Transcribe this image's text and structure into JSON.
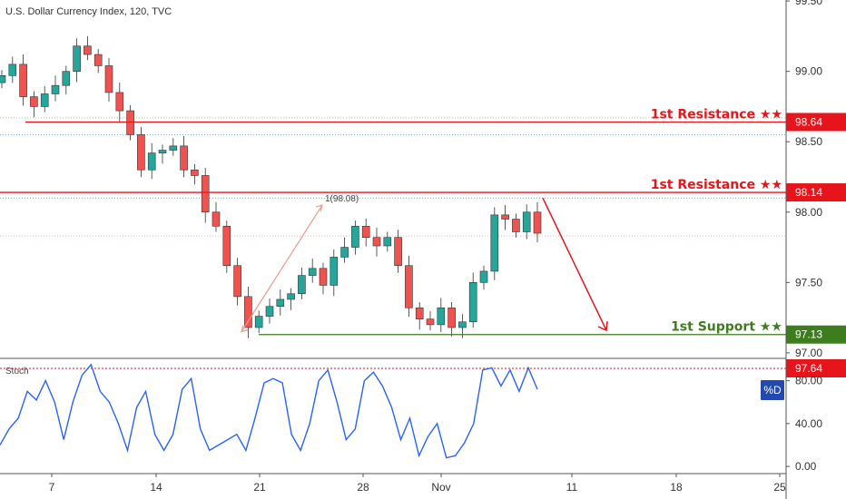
{
  "chart_title": "U.S. Dollar Currency Index, 120, TVC",
  "stoch_label": "Stoch",
  "d_label": "%D",
  "colors": {
    "resistance": "#e8141c",
    "support": "#3e7d1e",
    "candle_up": "#26a69a",
    "candle_down": "#ef5350",
    "stoch_line": "#2962ff",
    "badge_red": "#e8141c",
    "badge_green": "#3e7d1e",
    "badge_blue": "#2348b0",
    "projection": "#e8141c",
    "measure": "#f09a8c"
  },
  "chart_data": {
    "type": "candlestick",
    "price_axis": {
      "ticks": [
        "99.50",
        "99.00",
        "98.50",
        "98.00",
        "97.50",
        "97.00"
      ],
      "range": [
        96.98,
        99.52
      ]
    },
    "date_axis": {
      "ticks": [
        "7",
        "14",
        "21",
        "28",
        "Nov",
        "11",
        "18",
        "25"
      ]
    },
    "levels": [
      {
        "label": "1st Resistance ★★",
        "value": "98.64",
        "kind": "resistance"
      },
      {
        "label": "1st Resistance ★★",
        "value": "98.14",
        "kind": "resistance"
      },
      {
        "label": "1st Support ★★",
        "value": "97.13",
        "kind": "support"
      }
    ],
    "measure_label": "1(98.08)",
    "close_series": [
      98.97,
      99.05,
      98.82,
      98.75,
      98.84,
      98.9,
      99.0,
      99.18,
      99.12,
      99.04,
      98.85,
      98.72,
      98.55,
      98.3,
      98.42,
      98.44,
      98.47,
      98.3,
      98.26,
      98.0,
      97.9,
      97.62,
      97.4,
      97.18,
      97.26,
      97.33,
      97.38,
      97.42,
      97.55,
      97.6,
      97.48,
      97.68,
      97.75,
      97.9,
      97.82,
      97.76,
      97.82,
      97.62,
      97.32,
      97.24,
      97.2,
      97.32,
      97.18,
      97.22,
      97.5,
      97.58,
      97.98,
      97.95,
      97.86,
      98.0,
      97.85
    ],
    "stochastic": {
      "ticks": [
        "80.00",
        "40.00",
        "0.00"
      ],
      "range": [
        -5,
        100
      ],
      "overbought_label": "97.64",
      "values": [
        20,
        35,
        45,
        70,
        62,
        80,
        60,
        25,
        60,
        85,
        95,
        70,
        60,
        40,
        15,
        55,
        70,
        30,
        15,
        30,
        72,
        82,
        35,
        15,
        20,
        25,
        30,
        15,
        45,
        78,
        82,
        78,
        30,
        15,
        40,
        80,
        90,
        60,
        25,
        35,
        80,
        88,
        75,
        55,
        25,
        45,
        10,
        28,
        40,
        8,
        10,
        22,
        40,
        90,
        92,
        75,
        90,
        70,
        92,
        72
      ]
    }
  }
}
